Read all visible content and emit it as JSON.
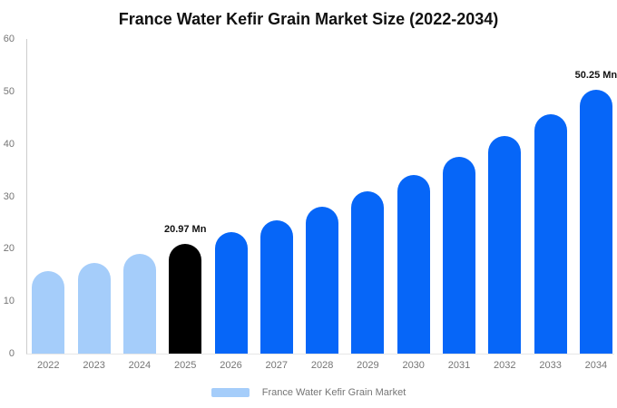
{
  "header": {
    "title": "France Water Kefir Grain Market Size (2022-2034)"
  },
  "chart_data": {
    "type": "bar",
    "title": "France Water Kefir Grain Market Size (2022-2034)",
    "categories": [
      "2022",
      "2023",
      "2024",
      "2025",
      "2026",
      "2027",
      "2028",
      "2029",
      "2030",
      "2031",
      "2032",
      "2033",
      "2034"
    ],
    "values": [
      15.66,
      17.26,
      19.03,
      20.97,
      23.11,
      25.47,
      28.07,
      30.94,
      34.1,
      37.58,
      41.42,
      45.65,
      50.25
    ],
    "unit": "Mn",
    "xlabel": "",
    "ylabel": "",
    "ylim": [
      0,
      60
    ],
    "y_ticks": [
      0,
      10,
      20,
      30,
      40,
      50,
      60
    ],
    "grid": false,
    "legend_position": "bottom",
    "data_labels": [
      {
        "category": "2025",
        "text": "20.97 Mn"
      },
      {
        "category": "2034",
        "text": "50.25 Mn"
      }
    ],
    "color_by_category": [
      "#A5CDFA",
      "#A5CDFA",
      "#A5CDFA",
      "#000000",
      "#0666F8",
      "#0666F8",
      "#0666F8",
      "#0666F8",
      "#0666F8",
      "#0666F8",
      "#0666F8",
      "#0666F8",
      "#0666F8"
    ]
  },
  "legend": {
    "label": "France Water Kefir Grain Market",
    "swatch_color": "#A5CDFA"
  },
  "colors": {
    "historical_bar": "#A5CDFA",
    "base_year_bar": "#000000",
    "forecast_bar": "#0666F8",
    "y_axis_line": "#cccccc",
    "x_baseline": "#e6e6e6",
    "tick_label_text": "#757575",
    "title_text": "#111111",
    "value_label_text": "#111111"
  }
}
